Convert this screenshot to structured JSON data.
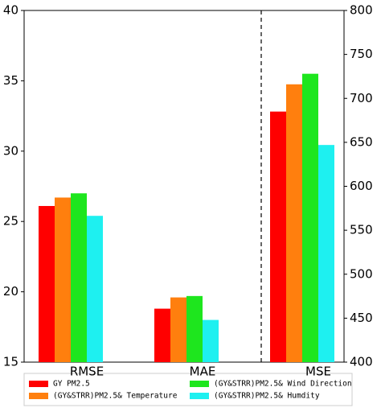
{
  "chart_data": [
    {
      "type": "bar",
      "categories": [
        "RMSE",
        "MAE"
      ],
      "series": [
        {
          "name": "GY PM2.5",
          "color": "#ff0000",
          "values": [
            26.1,
            18.8
          ]
        },
        {
          "name": "(GY&STRR)PM2.5& Temperature",
          "color": "#ff7f0e",
          "values": [
            26.7,
            19.6
          ]
        },
        {
          "name": "(GY&STRR)PM2.5& Wind Direction",
          "color": "#1ee61e",
          "values": [
            27.0,
            19.7
          ]
        },
        {
          "name": "(GY&STRR)PM2.5& Humdity",
          "color": "#1ef0f0",
          "values": [
            25.4,
            18.0
          ]
        }
      ],
      "ylim": [
        15,
        40
      ],
      "yticks": [
        15,
        20,
        25,
        30,
        35,
        40
      ],
      "legend": "bottom"
    },
    {
      "type": "bar",
      "categories": [
        "MSE"
      ],
      "series": [
        {
          "color": "#ff0000",
          "values": [
            685
          ],
          "axis": "y2"
        },
        {
          "color": "#ff7f0e",
          "values": [
            716
          ],
          "axis": "y2"
        },
        {
          "color": "#1ee61e",
          "values": [
            728
          ],
          "axis": "y2"
        },
        {
          "color": "#1ef0f0",
          "values": [
            647
          ],
          "axis": "y2"
        }
      ],
      "y2lim": [
        400,
        800
      ],
      "y2ticks": [
        400,
        450,
        500,
        550,
        600,
        650,
        700,
        750,
        800
      ]
    }
  ]
}
